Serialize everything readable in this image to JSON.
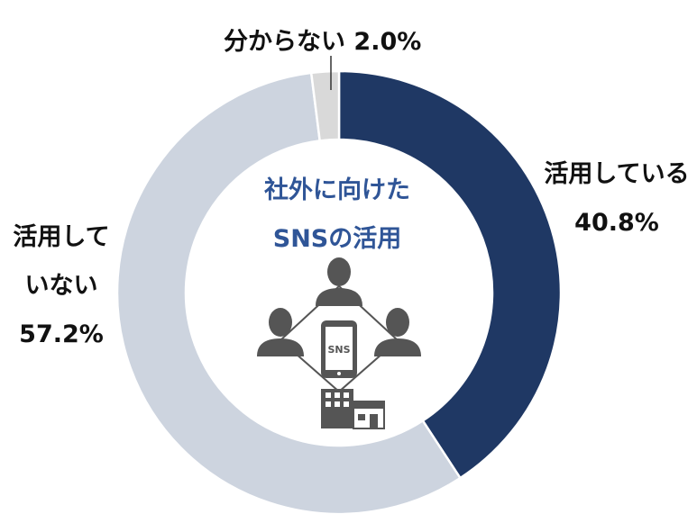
{
  "chart_data": {
    "type": "pie",
    "donut": true,
    "title": "社外に向けたSNSの活用",
    "title_lines": [
      "社外に向けた",
      "SNSの活用"
    ],
    "slices": [
      {
        "label": "活用している",
        "label_lines": [
          "活用している"
        ],
        "value": 40.8,
        "value_label": "40.8%",
        "color": "#1f3864"
      },
      {
        "label": "活用していない",
        "label_lines": [
          "活用して",
          "いない"
        ],
        "value": 57.2,
        "value_label": "57.2%",
        "color": "#cdd4df"
      },
      {
        "label": "分からない",
        "label_lines": [
          "分からない"
        ],
        "value": 2.0,
        "value_label": "2.0%",
        "color": "#d9d9d9"
      }
    ],
    "start": "top",
    "direction": "clockwise",
    "center_icon": {
      "name": "sns-network-icon",
      "text": "SNS",
      "color": "#555555"
    }
  }
}
